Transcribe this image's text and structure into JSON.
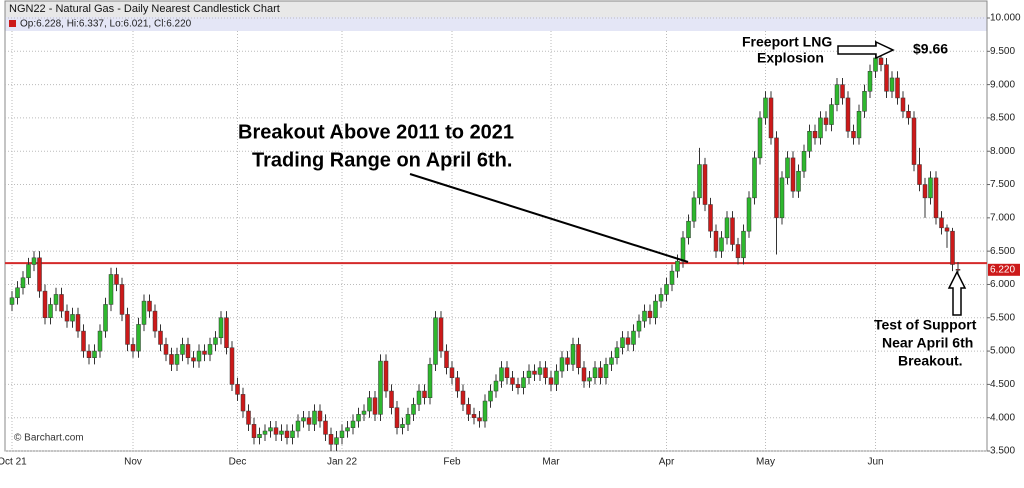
{
  "chart_data": {
    "type": "candlestick",
    "title": "NGN22 - Natural Gas - Daily Nearest Candlestick Chart",
    "legend_text": "Op:6.228, Hi:6.337, Lo:6.021, Cl:6.220",
    "credit": "© Barchart.com",
    "up_color": "#2eb82e",
    "down_color": "#cc1a1a",
    "grid": true,
    "ylim": [
      3.5,
      10
    ],
    "yticks": [
      {
        "value": 3.5,
        "label": "3.500"
      },
      {
        "value": 4,
        "label": "4.000"
      },
      {
        "value": 4.5,
        "label": "4.500"
      },
      {
        "value": 5,
        "label": "5.000"
      },
      {
        "value": 5.5,
        "label": "5.500"
      },
      {
        "value": 6,
        "label": "6.000"
      },
      {
        "value": 6.5,
        "label": "6.500"
      },
      {
        "value": 7,
        "label": "7.000"
      },
      {
        "value": 7.5,
        "label": "7.500"
      },
      {
        "value": 8,
        "label": "8.000"
      },
      {
        "value": 8.5,
        "label": "8.500"
      },
      {
        "value": 9,
        "label": "9.000"
      },
      {
        "value": 9.5,
        "label": "9.500"
      },
      {
        "value": 10,
        "label": "10.000"
      }
    ],
    "last_price": {
      "value": 6.22,
      "label": "6.220"
    },
    "support_line": {
      "value": 6.32,
      "color": "#d42a2a"
    },
    "annotations": {
      "breakout": [
        "Breakout Above 2011 to 2021",
        "Trading Range on April 6th."
      ],
      "freeport": [
        "Freeport LNG",
        "Explosion"
      ],
      "peak": "$9.66",
      "support": [
        "Test of Support",
        "Near April 6th",
        "Breakout."
      ]
    },
    "categories": [
      "Oct 21",
      null,
      null,
      null,
      null,
      null,
      null,
      null,
      null,
      null,
      null,
      null,
      null,
      null,
      null,
      null,
      null,
      null,
      null,
      null,
      null,
      null,
      "Nov",
      null,
      null,
      null,
      null,
      null,
      null,
      null,
      null,
      null,
      null,
      null,
      null,
      null,
      null,
      null,
      null,
      null,
      null,
      "Dec",
      null,
      null,
      null,
      null,
      null,
      null,
      null,
      null,
      null,
      null,
      null,
      null,
      null,
      null,
      null,
      null,
      null,
      null,
      "Jan 22",
      null,
      null,
      null,
      null,
      null,
      null,
      null,
      null,
      null,
      null,
      null,
      null,
      null,
      null,
      null,
      null,
      null,
      null,
      null,
      "Feb",
      null,
      null,
      null,
      null,
      null,
      null,
      null,
      null,
      null,
      null,
      null,
      null,
      null,
      null,
      null,
      null,
      null,
      "Mar",
      null,
      null,
      null,
      null,
      null,
      null,
      null,
      null,
      null,
      null,
      null,
      null,
      null,
      null,
      null,
      null,
      null,
      null,
      null,
      null,
      "Apr",
      null,
      null,
      null,
      null,
      null,
      null,
      null,
      null,
      null,
      null,
      null,
      null,
      null,
      null,
      null,
      null,
      null,
      "May",
      null,
      null,
      null,
      null,
      null,
      null,
      null,
      null,
      null,
      null,
      null,
      null,
      null,
      null,
      null,
      null,
      null,
      null,
      null,
      "Jun",
      null,
      null,
      null,
      null,
      null,
      null,
      null,
      null,
      null,
      null,
      null,
      null,
      null,
      null,
      null
    ],
    "ohlc": [
      [
        5.7,
        5.9,
        5.6,
        5.8
      ],
      [
        5.8,
        6.05,
        5.7,
        5.95
      ],
      [
        5.95,
        6.2,
        5.85,
        6.1
      ],
      [
        6.1,
        6.4,
        6.0,
        6.3
      ],
      [
        6.3,
        6.5,
        6.2,
        6.4
      ],
      [
        6.4,
        6.5,
        5.8,
        5.9
      ],
      [
        5.9,
        6.0,
        5.4,
        5.5
      ],
      [
        5.5,
        5.8,
        5.4,
        5.7
      ],
      [
        5.7,
        5.95,
        5.6,
        5.85
      ],
      [
        5.85,
        5.95,
        5.5,
        5.6
      ],
      [
        5.6,
        5.7,
        5.35,
        5.45
      ],
      [
        5.45,
        5.65,
        5.35,
        5.55
      ],
      [
        5.55,
        5.65,
        5.2,
        5.3
      ],
      [
        5.3,
        5.4,
        4.9,
        5.0
      ],
      [
        5.0,
        5.1,
        4.8,
        4.9
      ],
      [
        4.9,
        5.1,
        4.8,
        5.0
      ],
      [
        5.0,
        5.4,
        4.9,
        5.3
      ],
      [
        5.3,
        5.8,
        5.2,
        5.7
      ],
      [
        5.7,
        6.25,
        5.6,
        6.15
      ],
      [
        6.15,
        6.25,
        5.9,
        6.0
      ],
      [
        6.0,
        6.1,
        5.45,
        5.55
      ],
      [
        5.55,
        5.65,
        5.0,
        5.1
      ],
      [
        5.1,
        5.2,
        4.9,
        5.0
      ],
      [
        5.0,
        5.5,
        4.9,
        5.4
      ],
      [
        5.4,
        5.85,
        5.3,
        5.75
      ],
      [
        5.75,
        5.85,
        5.5,
        5.6
      ],
      [
        5.6,
        5.7,
        5.2,
        5.3
      ],
      [
        5.3,
        5.4,
        5.0,
        5.1
      ],
      [
        5.1,
        5.2,
        4.85,
        4.95
      ],
      [
        4.95,
        5.05,
        4.7,
        4.8
      ],
      [
        4.8,
        5.05,
        4.7,
        4.95
      ],
      [
        4.95,
        5.2,
        4.85,
        5.1
      ],
      [
        5.1,
        5.2,
        4.8,
        4.9
      ],
      [
        4.9,
        5.0,
        4.75,
        4.85
      ],
      [
        4.85,
        5.1,
        4.75,
        5.0
      ],
      [
        5.0,
        5.1,
        4.85,
        4.95
      ],
      [
        4.95,
        5.2,
        4.85,
        5.1
      ],
      [
        5.1,
        5.3,
        5.0,
        5.2
      ],
      [
        5.2,
        5.6,
        5.1,
        5.5
      ],
      [
        5.5,
        5.6,
        4.95,
        5.05
      ],
      [
        5.05,
        5.15,
        4.4,
        4.5
      ],
      [
        4.5,
        4.6,
        4.25,
        4.35
      ],
      [
        4.35,
        4.45,
        4.0,
        4.1
      ],
      [
        4.1,
        4.2,
        3.8,
        3.9
      ],
      [
        3.9,
        4.0,
        3.6,
        3.7
      ],
      [
        3.7,
        3.85,
        3.6,
        3.75
      ],
      [
        3.75,
        3.9,
        3.65,
        3.8
      ],
      [
        3.8,
        3.95,
        3.7,
        3.85
      ],
      [
        3.85,
        3.95,
        3.65,
        3.75
      ],
      [
        3.75,
        3.9,
        3.65,
        3.8
      ],
      [
        3.8,
        3.9,
        3.6,
        3.7
      ],
      [
        3.7,
        3.9,
        3.6,
        3.8
      ],
      [
        3.8,
        4.05,
        3.7,
        3.95
      ],
      [
        3.95,
        4.1,
        3.85,
        4.0
      ],
      [
        4.0,
        4.1,
        3.8,
        3.9
      ],
      [
        3.9,
        4.2,
        3.8,
        4.1
      ],
      [
        4.1,
        4.2,
        3.85,
        3.95
      ],
      [
        3.95,
        4.05,
        3.65,
        3.75
      ],
      [
        3.75,
        3.85,
        3.5,
        3.6
      ],
      [
        3.6,
        3.8,
        3.5,
        3.7
      ],
      [
        3.7,
        3.9,
        3.6,
        3.8
      ],
      [
        3.8,
        3.95,
        3.7,
        3.85
      ],
      [
        3.85,
        4.05,
        3.75,
        3.95
      ],
      [
        3.95,
        4.15,
        3.85,
        4.05
      ],
      [
        4.05,
        4.2,
        3.95,
        4.1
      ],
      [
        4.1,
        4.4,
        4.0,
        4.3
      ],
      [
        4.3,
        4.4,
        3.95,
        4.05
      ],
      [
        4.05,
        4.95,
        3.95,
        4.85
      ],
      [
        4.85,
        4.95,
        4.3,
        4.4
      ],
      [
        4.4,
        4.5,
        4.05,
        4.15
      ],
      [
        4.15,
        4.25,
        3.75,
        3.85
      ],
      [
        3.85,
        4.0,
        3.75,
        3.9
      ],
      [
        3.9,
        4.15,
        3.8,
        4.05
      ],
      [
        4.05,
        4.3,
        3.95,
        4.2
      ],
      [
        4.2,
        4.5,
        4.1,
        4.4
      ],
      [
        4.4,
        4.5,
        4.2,
        4.3
      ],
      [
        4.3,
        4.9,
        4.2,
        4.8
      ],
      [
        4.8,
        5.6,
        4.7,
        5.5
      ],
      [
        5.5,
        5.6,
        4.9,
        5.0
      ],
      [
        5.0,
        5.1,
        4.65,
        4.75
      ],
      [
        4.75,
        4.85,
        4.5,
        4.6
      ],
      [
        4.6,
        4.7,
        4.3,
        4.4
      ],
      [
        4.4,
        4.5,
        4.1,
        4.2
      ],
      [
        4.2,
        4.3,
        3.95,
        4.05
      ],
      [
        4.05,
        4.15,
        3.9,
        4.0
      ],
      [
        4.0,
        4.1,
        3.85,
        3.95
      ],
      [
        3.95,
        4.35,
        3.85,
        4.25
      ],
      [
        4.25,
        4.5,
        4.15,
        4.4
      ],
      [
        4.4,
        4.65,
        4.3,
        4.55
      ],
      [
        4.55,
        4.85,
        4.45,
        4.75
      ],
      [
        4.75,
        4.85,
        4.5,
        4.6
      ],
      [
        4.6,
        4.7,
        4.4,
        4.5
      ],
      [
        4.5,
        4.6,
        4.35,
        4.45
      ],
      [
        4.45,
        4.7,
        4.35,
        4.6
      ],
      [
        4.6,
        4.8,
        4.5,
        4.7
      ],
      [
        4.7,
        4.8,
        4.55,
        4.65
      ],
      [
        4.65,
        4.85,
        4.55,
        4.75
      ],
      [
        4.75,
        4.85,
        4.5,
        4.6
      ],
      [
        4.6,
        4.7,
        4.4,
        4.5
      ],
      [
        4.5,
        4.8,
        4.4,
        4.7
      ],
      [
        4.7,
        5.0,
        4.6,
        4.9
      ],
      [
        4.9,
        5.0,
        4.7,
        4.8
      ],
      [
        4.8,
        5.2,
        4.7,
        5.1
      ],
      [
        5.1,
        5.2,
        4.65,
        4.75
      ],
      [
        4.75,
        4.85,
        4.45,
        4.55
      ],
      [
        4.55,
        4.7,
        4.45,
        4.6
      ],
      [
        4.6,
        4.85,
        4.5,
        4.75
      ],
      [
        4.75,
        4.85,
        4.5,
        4.6
      ],
      [
        4.6,
        4.9,
        4.5,
        4.8
      ],
      [
        4.8,
        5.0,
        4.7,
        4.9
      ],
      [
        4.9,
        5.15,
        4.8,
        5.05
      ],
      [
        5.05,
        5.3,
        4.95,
        5.2
      ],
      [
        5.2,
        5.3,
        5.0,
        5.1
      ],
      [
        5.1,
        5.4,
        5.0,
        5.3
      ],
      [
        5.3,
        5.55,
        5.2,
        5.45
      ],
      [
        5.45,
        5.7,
        5.35,
        5.6
      ],
      [
        5.6,
        5.7,
        5.4,
        5.5
      ],
      [
        5.5,
        5.85,
        5.4,
        5.75
      ],
      [
        5.75,
        5.95,
        5.65,
        5.85
      ],
      [
        5.85,
        6.1,
        5.75,
        6.0
      ],
      [
        6.0,
        6.3,
        5.9,
        6.2
      ],
      [
        6.2,
        6.45,
        6.1,
        6.35
      ],
      [
        6.35,
        6.8,
        6.25,
        6.7
      ],
      [
        6.7,
        7.05,
        6.6,
        6.95
      ],
      [
        6.95,
        7.4,
        6.85,
        7.3
      ],
      [
        7.3,
        8.05,
        7.2,
        7.8
      ],
      [
        7.8,
        7.9,
        7.1,
        7.2
      ],
      [
        7.2,
        7.3,
        6.7,
        6.8
      ],
      [
        6.8,
        6.9,
        6.4,
        6.5
      ],
      [
        6.5,
        6.8,
        6.4,
        6.7
      ],
      [
        6.7,
        7.1,
        6.6,
        7.0
      ],
      [
        7.0,
        7.1,
        6.5,
        6.6
      ],
      [
        6.6,
        6.7,
        6.3,
        6.4
      ],
      [
        6.4,
        6.9,
        6.3,
        6.8
      ],
      [
        6.8,
        7.4,
        6.7,
        7.3
      ],
      [
        7.3,
        8.0,
        7.2,
        7.9
      ],
      [
        7.9,
        8.6,
        7.8,
        8.5
      ],
      [
        8.5,
        8.9,
        8.4,
        8.8
      ],
      [
        8.8,
        8.9,
        8.1,
        8.2
      ],
      [
        8.2,
        8.3,
        6.45,
        7.0
      ],
      [
        7.0,
        7.7,
        6.9,
        7.6
      ],
      [
        7.6,
        8.0,
        7.5,
        7.9
      ],
      [
        7.9,
        8.0,
        7.3,
        7.4
      ],
      [
        7.4,
        7.8,
        7.3,
        7.7
      ],
      [
        7.7,
        8.1,
        7.6,
        8.0
      ],
      [
        8.0,
        8.4,
        7.9,
        8.3
      ],
      [
        8.3,
        8.4,
        8.1,
        8.2
      ],
      [
        8.2,
        8.6,
        8.1,
        8.5
      ],
      [
        8.5,
        8.6,
        8.3,
        8.4
      ],
      [
        8.4,
        8.8,
        8.3,
        8.7
      ],
      [
        8.7,
        9.1,
        8.6,
        9.0
      ],
      [
        9.0,
        9.1,
        8.7,
        8.8
      ],
      [
        8.8,
        8.9,
        8.2,
        8.3
      ],
      [
        8.3,
        8.4,
        8.1,
        8.2
      ],
      [
        8.2,
        8.7,
        8.1,
        8.6
      ],
      [
        8.6,
        9.0,
        8.5,
        8.9
      ],
      [
        8.9,
        9.3,
        8.8,
        9.2
      ],
      [
        9.2,
        9.66,
        9.1,
        9.4
      ],
      [
        9.4,
        9.5,
        9.2,
        9.3
      ],
      [
        9.3,
        9.4,
        8.8,
        8.9
      ],
      [
        8.9,
        9.2,
        8.8,
        9.1
      ],
      [
        9.1,
        9.2,
        8.7,
        8.8
      ],
      [
        8.8,
        8.9,
        8.5,
        8.6
      ],
      [
        8.6,
        8.7,
        8.4,
        8.5
      ],
      [
        8.5,
        8.6,
        7.7,
        7.8
      ],
      [
        7.8,
        8.05,
        7.4,
        7.5
      ],
      [
        7.5,
        7.6,
        7.0,
        7.3
      ],
      [
        7.3,
        7.7,
        7.2,
        7.6
      ],
      [
        7.6,
        7.7,
        6.9,
        7.0
      ],
      [
        7.0,
        7.1,
        6.75,
        6.85
      ],
      [
        6.85,
        6.9,
        6.55,
        6.8
      ],
      [
        6.8,
        6.85,
        6.2,
        6.3
      ],
      [
        6.228,
        6.337,
        6.021,
        6.22
      ]
    ]
  }
}
